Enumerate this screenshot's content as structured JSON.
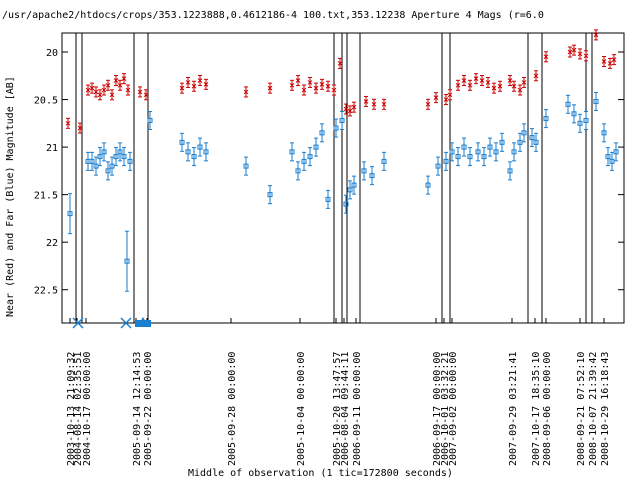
{
  "chart_data": {
    "type": "scatter",
    "title": "/usr/apache2/htdocs/crops/353.1223888,0.4612186-4 100.txt,353.12238    Aperture 4 Mags (r=6.0",
    "xlabel": "Middle of observation (1 tic=172800 seconds)",
    "ylabel": "Near (Red) and Far (Blue) Magnitude [AB]",
    "ylim": [
      22.85,
      19.8
    ],
    "y_ticks": [
      "20",
      "20.5",
      "21",
      "21.5",
      "22",
      "22.5"
    ],
    "x_ticks": [
      "2003-10-13 21:09:32",
      "2004-08-14 02:35:51",
      "2004-10-17 00:00:00",
      "2005-09-14 12:14:53",
      "2005-09-22 00:00:00",
      "2005-09-28 00:00:00",
      "2005-10-04 00:00:00",
      "2005-10-20 13:47:57",
      "2006-08-04 09:44:11",
      "2006-09-11 00:00:00",
      "2006-09-17 00:00:00",
      "2006-10-01 03:32:21",
      "2007-09-02 00:00:00",
      "2007-09-29 03:21:41",
      "2007-10-17 18:35:10",
      "2008-09-06 00:00:00",
      "2008-09-21 07:52:10",
      "2008-10-07 21:39:42",
      "2008-10-29 16:18:43"
    ],
    "colors": {
      "near": "#cc0000",
      "far": "#1a7fd0"
    },
    "series": [
      {
        "name": "Near",
        "points": [
          [
            68,
            20.75
          ],
          [
            80,
            20.8
          ],
          [
            88,
            20.4
          ],
          [
            92,
            20.38
          ],
          [
            96,
            20.42
          ],
          [
            100,
            20.45
          ],
          [
            104,
            20.4
          ],
          [
            108,
            20.35
          ],
          [
            112,
            20.45
          ],
          [
            116,
            20.3
          ],
          [
            120,
            20.35
          ],
          [
            124,
            20.28
          ],
          [
            128,
            20.4
          ],
          [
            140,
            20.42
          ],
          [
            146,
            20.45
          ],
          [
            182,
            20.38
          ],
          [
            188,
            20.32
          ],
          [
            194,
            20.36
          ],
          [
            200,
            20.3
          ],
          [
            206,
            20.34
          ],
          [
            246,
            20.42
          ],
          [
            270,
            20.38
          ],
          [
            292,
            20.35
          ],
          [
            298,
            20.3
          ],
          [
            304,
            20.4
          ],
          [
            310,
            20.32
          ],
          [
            316,
            20.38
          ],
          [
            322,
            20.34
          ],
          [
            328,
            20.36
          ],
          [
            334,
            20.4
          ],
          [
            340,
            20.12
          ],
          [
            346,
            20.6
          ],
          [
            350,
            20.62
          ],
          [
            354,
            20.58
          ],
          [
            366,
            20.52
          ],
          [
            374,
            20.55
          ],
          [
            384,
            20.55
          ],
          [
            428,
            20.55
          ],
          [
            436,
            20.48
          ],
          [
            446,
            20.5
          ],
          [
            450,
            20.45
          ],
          [
            458,
            20.35
          ],
          [
            464,
            20.3
          ],
          [
            470,
            20.35
          ],
          [
            476,
            20.28
          ],
          [
            482,
            20.3
          ],
          [
            488,
            20.32
          ],
          [
            494,
            20.38
          ],
          [
            500,
            20.36
          ],
          [
            510,
            20.3
          ],
          [
            514,
            20.36
          ],
          [
            520,
            20.4
          ],
          [
            524,
            20.32
          ],
          [
            536,
            20.25
          ],
          [
            546,
            20.05
          ],
          [
            570,
            20.0
          ],
          [
            574,
            19.98
          ],
          [
            580,
            20.02
          ],
          [
            586,
            20.04
          ],
          [
            596,
            19.82
          ],
          [
            604,
            20.1
          ],
          [
            610,
            20.12
          ],
          [
            614,
            20.08
          ]
        ]
      },
      {
        "name": "Far",
        "points": [
          [
            70,
            21.7
          ],
          [
            88,
            21.15
          ],
          [
            92,
            21.15
          ],
          [
            96,
            21.2
          ],
          [
            100,
            21.1
          ],
          [
            104,
            21.05
          ],
          [
            108,
            21.25
          ],
          [
            112,
            21.2
          ],
          [
            116,
            21.1
          ],
          [
            120,
            21.05
          ],
          [
            124,
            21.1
          ],
          [
            127,
            22.2
          ],
          [
            130,
            21.15
          ],
          [
            150,
            20.72
          ],
          [
            182,
            20.95
          ],
          [
            188,
            21.05
          ],
          [
            194,
            21.1
          ],
          [
            200,
            21.0
          ],
          [
            206,
            21.05
          ],
          [
            246,
            21.2
          ],
          [
            270,
            21.5
          ],
          [
            292,
            21.05
          ],
          [
            298,
            21.25
          ],
          [
            304,
            21.15
          ],
          [
            310,
            21.1
          ],
          [
            316,
            21.0
          ],
          [
            322,
            20.85
          ],
          [
            328,
            21.55
          ],
          [
            336,
            20.8
          ],
          [
            342,
            20.72
          ],
          [
            346,
            21.6
          ],
          [
            350,
            21.45
          ],
          [
            354,
            21.4
          ],
          [
            364,
            21.25
          ],
          [
            372,
            21.3
          ],
          [
            384,
            21.15
          ],
          [
            428,
            21.4
          ],
          [
            438,
            21.2
          ],
          [
            446,
            21.15
          ],
          [
            452,
            21.05
          ],
          [
            458,
            21.1
          ],
          [
            464,
            21.0
          ],
          [
            470,
            21.1
          ],
          [
            478,
            21.05
          ],
          [
            484,
            21.1
          ],
          [
            490,
            21.0
          ],
          [
            496,
            21.05
          ],
          [
            502,
            20.95
          ],
          [
            510,
            21.25
          ],
          [
            514,
            21.05
          ],
          [
            520,
            20.95
          ],
          [
            524,
            20.85
          ],
          [
            532,
            20.9
          ],
          [
            536,
            20.95
          ],
          [
            546,
            20.7
          ],
          [
            568,
            20.55
          ],
          [
            574,
            20.65
          ],
          [
            580,
            20.75
          ],
          [
            586,
            20.72
          ],
          [
            596,
            20.52
          ],
          [
            604,
            20.85
          ],
          [
            608,
            21.1
          ],
          [
            612,
            21.15
          ],
          [
            616,
            21.05
          ]
        ]
      }
    ]
  }
}
